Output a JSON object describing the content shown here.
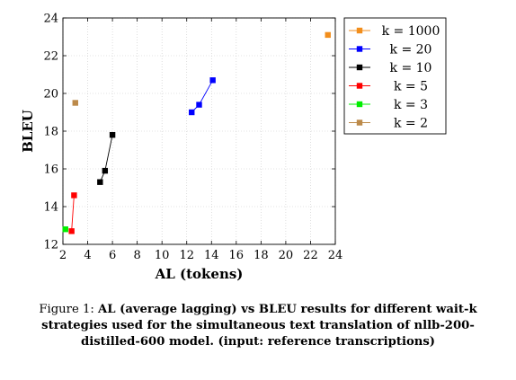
{
  "chart_data": {
    "type": "line",
    "xlabel": "AL (tokens)",
    "ylabel": "BLEU",
    "xlim": [
      2,
      24
    ],
    "ylim": [
      12,
      24
    ],
    "xticks": [
      2,
      4,
      6,
      8,
      10,
      12,
      14,
      16,
      18,
      20,
      22,
      24
    ],
    "yticks": [
      12,
      14,
      16,
      18,
      20,
      22,
      24
    ],
    "grid": true,
    "legend_position": "right-outside",
    "series": [
      {
        "name": "k = 1000",
        "color": "#f28e1c",
        "points": [
          [
            23.4,
            23.1
          ]
        ]
      },
      {
        "name": "k = 20",
        "color": "#0000ff",
        "points": [
          [
            12.4,
            19.0
          ],
          [
            13.0,
            19.4
          ],
          [
            14.1,
            20.7
          ]
        ]
      },
      {
        "name": "k = 10",
        "color": "#000000",
        "points": [
          [
            5.0,
            15.3
          ],
          [
            5.4,
            15.9
          ],
          [
            6.0,
            17.8
          ]
        ]
      },
      {
        "name": "k = 5",
        "color": "#ff0000",
        "points": [
          [
            2.7,
            12.7
          ],
          [
            2.9,
            14.6
          ]
        ]
      },
      {
        "name": "k = 3",
        "color": "#00ee00",
        "points": [
          [
            2.2,
            12.8
          ]
        ]
      },
      {
        "name": "k = 2",
        "color": "#bc8a4a",
        "points": [
          [
            3.0,
            19.5
          ]
        ]
      }
    ]
  },
  "caption": {
    "lead": "Figure 1:",
    "text": "AL (average lagging) vs BLEU results for different wait-k strategies used for the simultaneous text translation of nllb-200-distilled-600 model. (input: reference transcriptions)"
  }
}
